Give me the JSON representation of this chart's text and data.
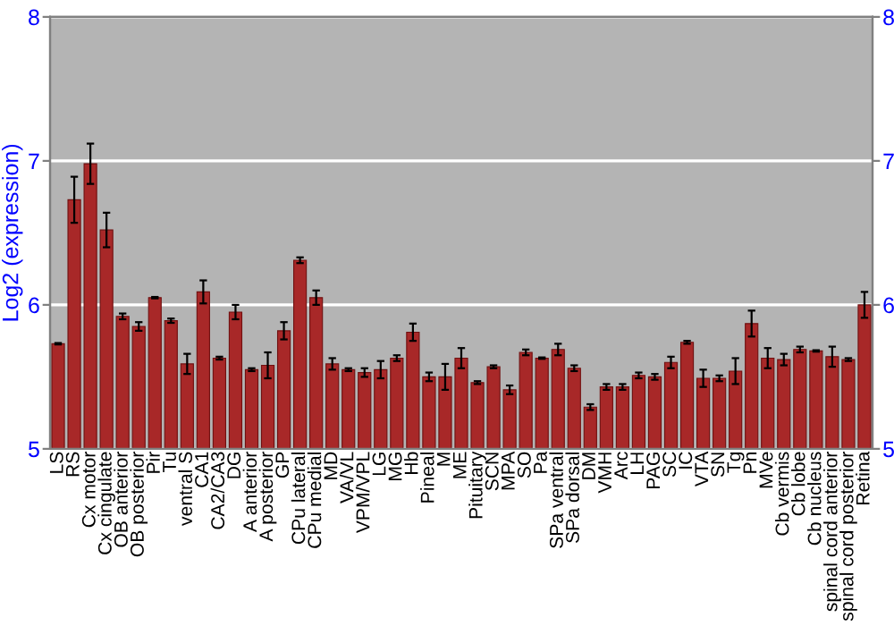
{
  "chart_data": {
    "type": "bar",
    "ylabel": "Log2 (expression)",
    "categories": [
      "LS",
      "RS",
      "Cx motor",
      "Cx cingulate",
      "OB anterior",
      "OB posterior",
      "Pir",
      "Tu",
      "ventral S",
      "CA1",
      "CA2/CA3",
      "DG",
      "A anterior",
      "A posterior",
      "GP",
      "CPu lateral",
      "CPu medial",
      "MD",
      "VA/VL",
      "VPM/VPL",
      "LG",
      "MG",
      "Hb",
      "Pineal",
      "M",
      "ME",
      "Pituitary",
      "SCN",
      "MPA",
      "SO",
      "Pa",
      "SPa ventral",
      "SPa dorsal",
      "DM",
      "VMH",
      "Arc",
      "LH",
      "PAG",
      "SC",
      "IC",
      "VTA",
      "SN",
      "Tg",
      "Pn",
      "MVe",
      "Cb vermis",
      "Cb lobe",
      "Cb nucleus",
      "spinal cord anterior",
      "spinal cord posterior",
      "Retina"
    ],
    "values": [
      5.73,
      6.73,
      6.98,
      6.52,
      5.92,
      5.85,
      6.05,
      5.89,
      5.59,
      6.09,
      5.63,
      5.95,
      5.55,
      5.58,
      5.82,
      6.31,
      6.05,
      5.59,
      5.55,
      5.53,
      5.55,
      5.63,
      5.81,
      5.5,
      5.5,
      5.63,
      5.46,
      5.57,
      5.41,
      5.67,
      5.63,
      5.69,
      5.56,
      5.29,
      5.43,
      5.43,
      5.51,
      5.5,
      5.6,
      5.74,
      5.49,
      5.49,
      5.54,
      5.87,
      5.63,
      5.62,
      5.69,
      5.68,
      5.64,
      5.62,
      6.0
    ],
    "errors": [
      0.005,
      0.16,
      0.14,
      0.12,
      0.02,
      0.03,
      0.005,
      0.015,
      0.07,
      0.08,
      0.01,
      0.05,
      0.01,
      0.09,
      0.06,
      0.02,
      0.05,
      0.04,
      0.01,
      0.03,
      0.06,
      0.02,
      0.06,
      0.03,
      0.09,
      0.07,
      0.01,
      0.01,
      0.03,
      0.02,
      0.005,
      0.04,
      0.02,
      0.02,
      0.02,
      0.02,
      0.02,
      0.02,
      0.04,
      0.01,
      0.06,
      0.02,
      0.09,
      0.09,
      0.07,
      0.04,
      0.02,
      0.005,
      0.07,
      0.01,
      0.09
    ],
    "color": "#a82828",
    "ylim": [
      5,
      8
    ],
    "yticks": [
      5,
      6,
      7,
      8
    ],
    "y2lim": [
      5,
      8
    ],
    "y2ticks": [
      5,
      6,
      7,
      8
    ],
    "grid": "y"
  }
}
